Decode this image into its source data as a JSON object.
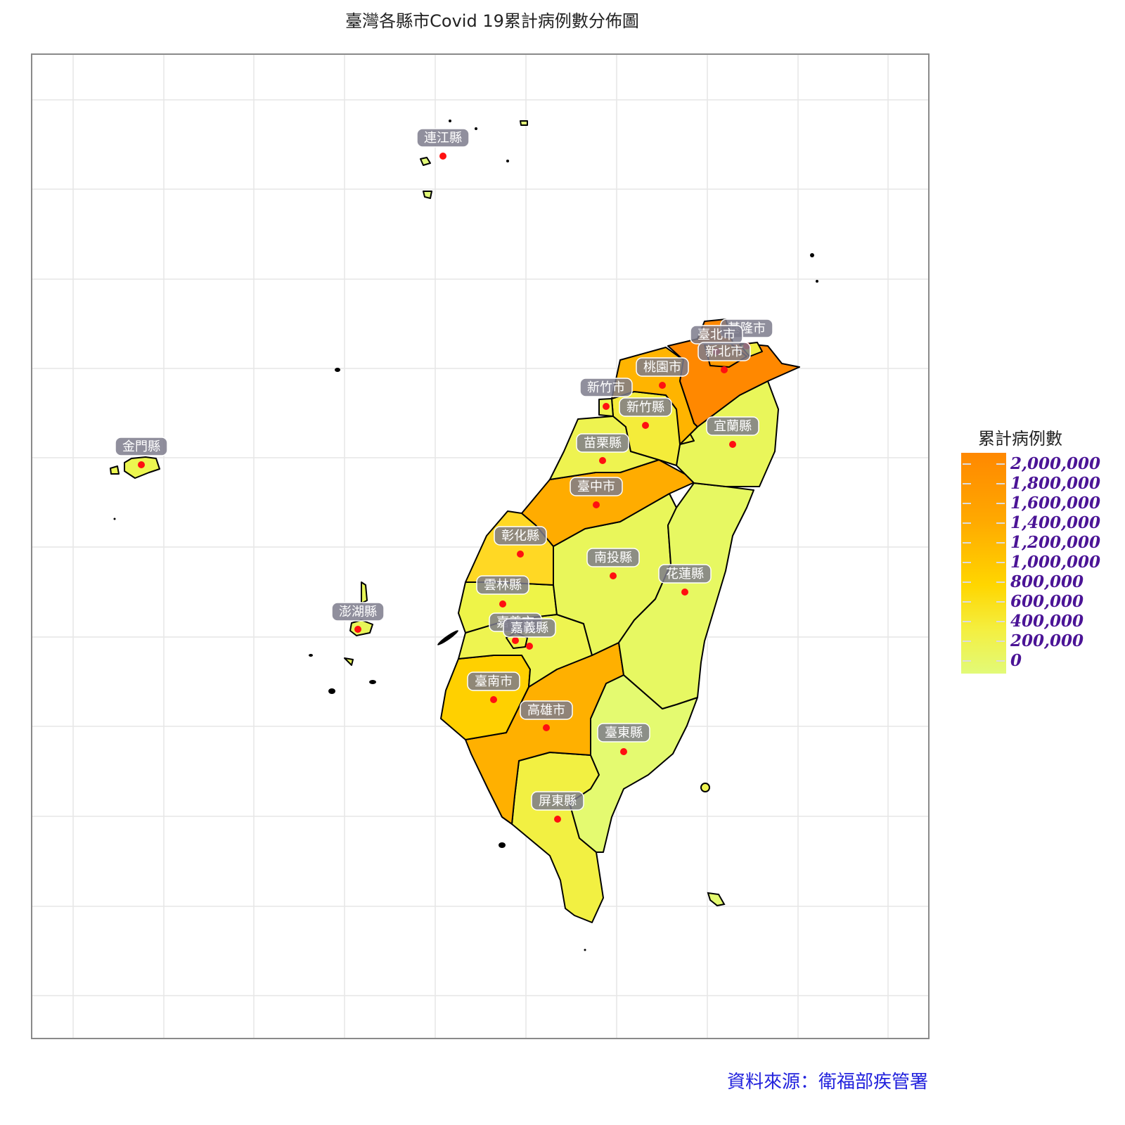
{
  "title": "臺灣各縣市Covid 19累計病例數分佈圖",
  "source": "資料來源：衛福部疾管署",
  "legend": {
    "title": "累計病例數",
    "labels": [
      "2,000,000",
      "1,800,000",
      "1,600,000",
      "1,400,000",
      "1,200,000",
      "1,000,000",
      "800,000",
      "600,000",
      "400,000",
      "200,000",
      "0"
    ],
    "colors": {
      "low": "#e2fa78",
      "mid": "#ffd600",
      "high": "#ff8800"
    }
  },
  "regions": [
    {
      "name": "連江縣",
      "key": "lienchiang",
      "color": "#e2fa78"
    },
    {
      "name": "金門縣",
      "key": "kinmen",
      "color": "#ecf650"
    },
    {
      "name": "澎湖縣",
      "key": "penghu",
      "color": "#e8f658"
    },
    {
      "name": "基隆市",
      "key": "keelung",
      "color": "#f0ef40"
    },
    {
      "name": "臺北市",
      "key": "taipei",
      "color": "#ff9a00"
    },
    {
      "name": "新北市",
      "key": "newtaipei",
      "color": "#ff8800"
    },
    {
      "name": "桃園市",
      "key": "taoyuan",
      "color": "#ffb400"
    },
    {
      "name": "新竹市",
      "key": "hsinchucity",
      "color": "#eef450"
    },
    {
      "name": "新竹縣",
      "key": "hsinchucounty",
      "color": "#f4ec3a"
    },
    {
      "name": "苗栗縣",
      "key": "miaoli",
      "color": "#eef350"
    },
    {
      "name": "宜蘭縣",
      "key": "yilan",
      "color": "#e9f65a"
    },
    {
      "name": "臺中市",
      "key": "taichung",
      "color": "#ffac00"
    },
    {
      "name": "彰化縣",
      "key": "changhua",
      "color": "#ffd824"
    },
    {
      "name": "南投縣",
      "key": "nantou",
      "color": "#e9f65a"
    },
    {
      "name": "花蓮縣",
      "key": "hualien",
      "color": "#e7f862"
    },
    {
      "name": "雲林縣",
      "key": "yunlin",
      "color": "#eef448"
    },
    {
      "name": "嘉義市",
      "key": "chiayicity",
      "color": "#f0f246"
    },
    {
      "name": "嘉義縣",
      "key": "chiayicounty",
      "color": "#eef450"
    },
    {
      "name": "臺南市",
      "key": "tainan",
      "color": "#ffd000"
    },
    {
      "name": "高雄市",
      "key": "kaohsiung",
      "color": "#ffb000"
    },
    {
      "name": "臺東縣",
      "key": "taitung",
      "color": "#e4fa70"
    },
    {
      "name": "屏東縣",
      "key": "pingtung",
      "color": "#f2f042"
    }
  ]
}
